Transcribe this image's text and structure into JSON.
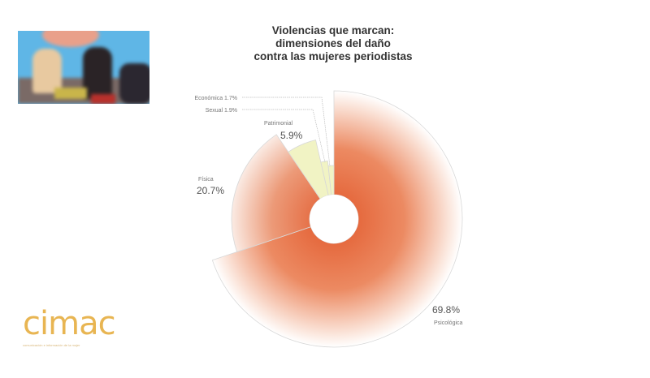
{
  "chart_data": {
    "type": "pie",
    "title": "Violencias que marcan:\ndimensiones del daño\ncontra las mujeres periodistas",
    "title_lines": [
      "Violencias que marcan:",
      "dimensiones del daño",
      "contra las mujeres periodistas"
    ],
    "slices": [
      {
        "label": "Psicológica",
        "value": 69.8,
        "value_label": "69.8%",
        "color": "#e2653a"
      },
      {
        "label": "Física",
        "value": 20.7,
        "value_label": "20.7%",
        "color": "#e2653a"
      },
      {
        "label": "Patrimonial",
        "value": 5.9,
        "value_label": "5.9%",
        "color": "#f1f3c4"
      },
      {
        "label": "Sexual",
        "value": 1.9,
        "value_label": "1.9%",
        "color": "#f1f3c4"
      },
      {
        "label": "Económica",
        "value": 1.7,
        "value_label": "1.7%",
        "color": "#f1f3c4"
      }
    ]
  },
  "logo": {
    "text": "cimac",
    "tagline": "comunicación e información de la mujer",
    "color": "#e8b552"
  },
  "video_inset": {
    "description_icon": "video-feed"
  }
}
